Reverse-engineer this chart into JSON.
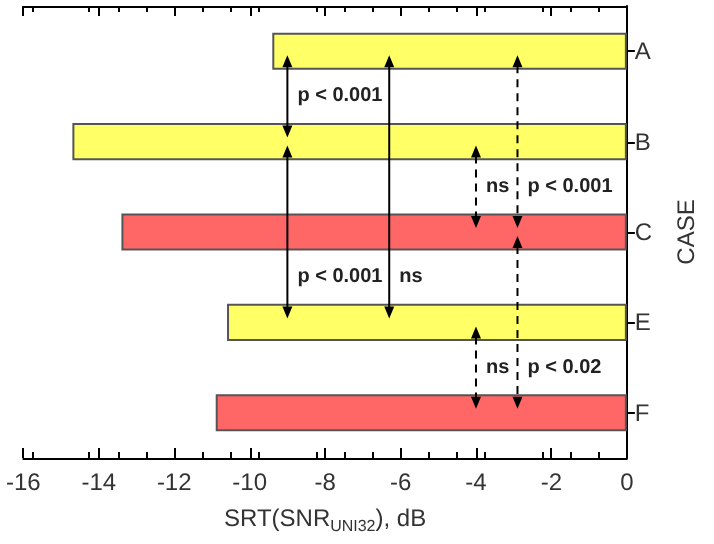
{
  "chart_data": {
    "type": "bar",
    "orientation": "horizontal",
    "xlabel": "SRT(SNR$_{UNI32}$), dB",
    "ylabel": "CASE",
    "categories": [
      "A",
      "B",
      "C",
      "E",
      "F"
    ],
    "values": [
      -9.4,
      -14.7,
      -13.4,
      -10.6,
      -10.9
    ],
    "colors": [
      "#ffff66",
      "#ffff66",
      "#ff6666",
      "#ffff66",
      "#ff6666"
    ],
    "xlim": [
      -16,
      0
    ],
    "xticks": [
      -16,
      -14,
      -12,
      -10,
      -8,
      -6,
      -4,
      -2,
      0
    ],
    "annotations": [
      "p < 0.001",
      "ns",
      "p < 0.001",
      "p < 0.001",
      "ns",
      "ns",
      "p < 0.02"
    ]
  }
}
